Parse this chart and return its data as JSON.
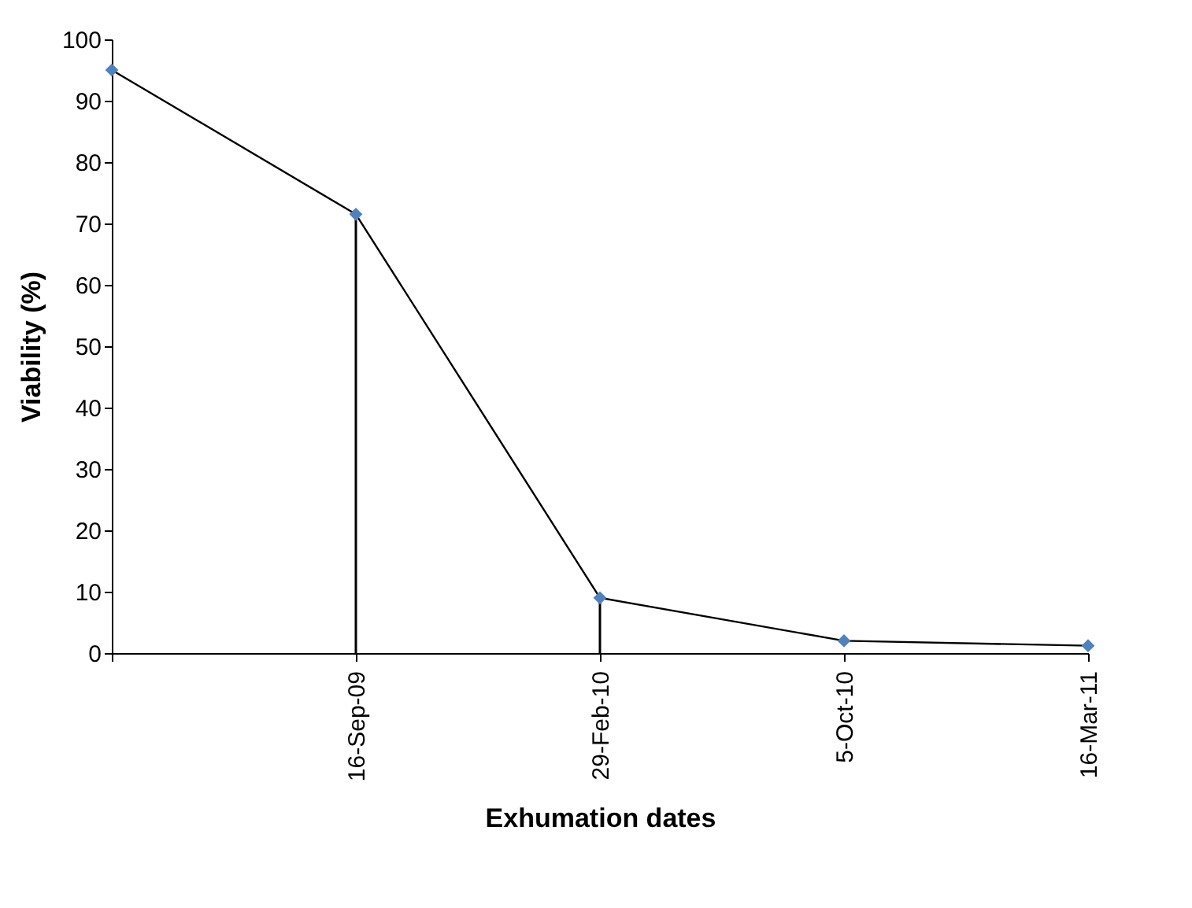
{
  "chart_data": {
    "type": "line",
    "xlabel": "Exhumation dates",
    "ylabel": "Viability (%)",
    "categories": [
      null,
      "16-Sep-09",
      "29-Feb-10",
      "5-Oct-10",
      "16-Mar-11"
    ],
    "series": [
      {
        "type": "bar",
        "color": "#000000",
        "values": [
          null,
          71.5,
          9,
          null,
          null
        ]
      },
      {
        "color": "#4f81bd",
        "values": [
          95,
          71.5,
          9,
          2,
          1.2
        ]
      }
    ],
    "ylim": [
      0,
      100
    ],
    "yticks": [
      0,
      10,
      20,
      30,
      40,
      50,
      60,
      70,
      80,
      90,
      100
    ],
    "marker": "diamond",
    "line_style": "solid"
  }
}
